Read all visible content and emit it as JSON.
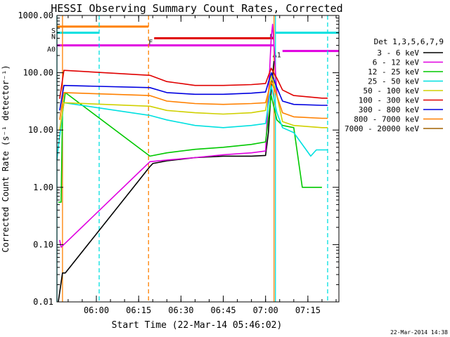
{
  "chart_data": {
    "type": "line",
    "title": "HESSI Observing Summary Count Rates, Corrected",
    "xlabel": "Start Time (22-Mar-14 05:46:02)",
    "ylabel": "Corrected Count Rate (s⁻¹ detector⁻¹)",
    "ylog": true,
    "ylim": [
      0.01,
      1000
    ],
    "xlim": [
      "05:46:02",
      "07:26:00"
    ],
    "yticks": [
      {
        "value": 1000,
        "label": "1000.00"
      },
      {
        "value": 100,
        "label": "100.00"
      },
      {
        "value": 10,
        "label": "10.00"
      },
      {
        "value": 1,
        "label": "1.00"
      },
      {
        "value": 0.1,
        "label": "0.10"
      },
      {
        "value": 0.01,
        "label": "0.01"
      }
    ],
    "xticks": [
      "06:00",
      "06:15",
      "06:30",
      "06:45",
      "07:00",
      "07:15"
    ],
    "legend_title": "Det 1,3,5,6,7,9",
    "legend_position": "right",
    "series": [
      {
        "name": "3 - 6 keV",
        "color": "#000000",
        "x": [
          "05:46:30",
          "05:48:00",
          "05:49:00",
          "06:19:00",
          "06:20:00",
          "06:25:00",
          "06:35:00",
          "06:45:00",
          "06:55:00",
          "07:00:00",
          "07:01:00",
          "07:02:00",
          "07:03:00"
        ],
        "y": [
          0.01,
          0.032,
          0.032,
          2.3,
          2.6,
          2.9,
          3.3,
          3.5,
          3.5,
          3.6,
          9,
          50,
          160
        ]
      },
      {
        "name": "6 - 12 keV",
        "color": "#e000e0",
        "x": [
          "05:47:00",
          "05:47:30",
          "06:19:00",
          "06:25:00",
          "06:35:00",
          "06:45:00",
          "06:55:00",
          "07:00:00",
          "07:01:00",
          "07:02:00",
          "07:02:30",
          "07:03:00",
          "07:04:00"
        ],
        "y": [
          0.12,
          0.09,
          2.8,
          3.0,
          3.3,
          3.7,
          4.0,
          4.3,
          40,
          400,
          700,
          300,
          40
        ]
      },
      {
        "name": "12 - 25 keV",
        "color": "#00c800",
        "x": [
          "05:46:30",
          "05:47:30",
          "05:48:00",
          "05:49:00",
          "06:19:00",
          "06:25:00",
          "06:35:00",
          "06:45:00",
          "06:55:00",
          "07:00:00",
          "07:02:00",
          "07:04:00",
          "07:06:00",
          "07:10:00",
          "07:13:00",
          "07:15:00",
          "07:20:00"
        ],
        "y": [
          0.55,
          0.55,
          20,
          45,
          3.5,
          4.0,
          4.6,
          5.0,
          5.6,
          6.2,
          40,
          15,
          12,
          11,
          1.0,
          1.0,
          1.0
        ]
      },
      {
        "name": "25 - 50 keV",
        "color": "#00e0e0",
        "x": [
          "05:46:02",
          "05:46:30",
          "05:47:30",
          "05:48:30",
          "06:19:00",
          "06:25:00",
          "06:35:00",
          "06:45:00",
          "06:55:00",
          "07:00:00",
          "07:02:00",
          "07:04:00",
          "07:06:00",
          "07:10:00",
          "07:16:00",
          "07:18:00",
          "07:22:00"
        ],
        "y": [
          3,
          5,
          12,
          30,
          18,
          15,
          12,
          11,
          12,
          13,
          60,
          20,
          11,
          9,
          3.5,
          4.5,
          4.5
        ]
      },
      {
        "name": "50 - 100 keV",
        "color": "#d0d000",
        "x": [
          "05:47:00",
          "05:48:30",
          "06:19:00",
          "06:25:00",
          "06:35:00",
          "06:45:00",
          "06:55:00",
          "07:00:00",
          "07:02:00",
          "07:04:00",
          "07:06:00",
          "07:10:00",
          "07:20:00",
          "07:22:00"
        ],
        "y": [
          10,
          30,
          26,
          22,
          20,
          19,
          20,
          22,
          90,
          40,
          14,
          12,
          11,
          11
        ]
      },
      {
        "name": "100 - 300 keV",
        "color": "#e00000",
        "x": [
          "05:47:00",
          "05:48:30",
          "06:19:00",
          "06:25:00",
          "06:35:00",
          "06:45:00",
          "06:55:00",
          "07:00:00",
          "07:02:00",
          "07:04:00",
          "07:06:00",
          "07:10:00",
          "07:20:00",
          "07:22:00"
        ],
        "y": [
          35,
          110,
          90,
          70,
          60,
          60,
          62,
          65,
          120,
          80,
          50,
          40,
          36,
          36
        ]
      },
      {
        "name": "300 - 800 keV",
        "color": "#0000e0",
        "x": [
          "05:47:00",
          "05:48:30",
          "06:19:00",
          "06:25:00",
          "06:35:00",
          "06:45:00",
          "06:55:00",
          "07:00:00",
          "07:02:00",
          "07:04:00",
          "07:06:00",
          "07:10:00",
          "07:20:00",
          "07:22:00"
        ],
        "y": [
          22,
          60,
          55,
          45,
          42,
          42,
          44,
          46,
          100,
          55,
          32,
          28,
          27,
          27
        ]
      },
      {
        "name": "800 - 7000 keV",
        "color": "#ff8000",
        "x": [
          "05:47:00",
          "05:48:30",
          "06:19:00",
          "06:25:00",
          "06:35:00",
          "06:45:00",
          "06:55:00",
          "07:00:00",
          "07:02:00",
          "07:04:00",
          "07:06:00",
          "07:10:00",
          "07:20:00",
          "07:22:00"
        ],
        "y": [
          15,
          45,
          40,
          32,
          29,
          28,
          29,
          30,
          70,
          40,
          20,
          17,
          16,
          16
        ]
      },
      {
        "name": "7000 - 20000 keV",
        "color": "#a06000",
        "x": [],
        "y": []
      }
    ],
    "annotations": [
      {
        "type": "bar",
        "label": "S",
        "color": "#ff8000",
        "x": [
          "05:46:02",
          "06:18:30"
        ],
        "y": 640
      },
      {
        "type": "bar",
        "label": "N",
        "color": "#00e0e0",
        "x": [
          "05:46:02",
          "06:01:00"
        ],
        "y": 500
      },
      {
        "type": "bar",
        "label": "N",
        "color": "#00e0e0",
        "x": [
          "07:03:30",
          "07:26:00"
        ],
        "y": 500
      },
      {
        "type": "bar",
        "label": "F",
        "color": "#e00000",
        "x": [
          "06:20:30",
          "07:03:00"
        ],
        "y": 400
      },
      {
        "type": "bar",
        "label": "A0",
        "color": "#e000e0",
        "x": [
          "05:46:02",
          "07:03:00"
        ],
        "y": 300
      },
      {
        "type": "bar",
        "label": "A1",
        "color": "#e000e0",
        "x": [
          "07:06:00",
          "07:26:00"
        ],
        "y": 240
      }
    ],
    "vlines": [
      {
        "x": "05:46:02",
        "color": "#00e0e0",
        "style": "solid"
      },
      {
        "x": "05:48:00",
        "color": "#ff8000",
        "style": "solid"
      },
      {
        "x": "06:01:00",
        "color": "#00e0e0",
        "style": "dashed"
      },
      {
        "x": "06:18:30",
        "color": "#ff8000",
        "style": "dashed"
      },
      {
        "x": "07:03:00",
        "color": "#ff8000",
        "style": "solid"
      },
      {
        "x": "07:03:30",
        "color": "#00e0e0",
        "style": "solid"
      },
      {
        "x": "07:22:00",
        "color": "#00e0e0",
        "style": "dashed"
      }
    ]
  },
  "footer_timestamp": "22-Mar-2014 14:38"
}
